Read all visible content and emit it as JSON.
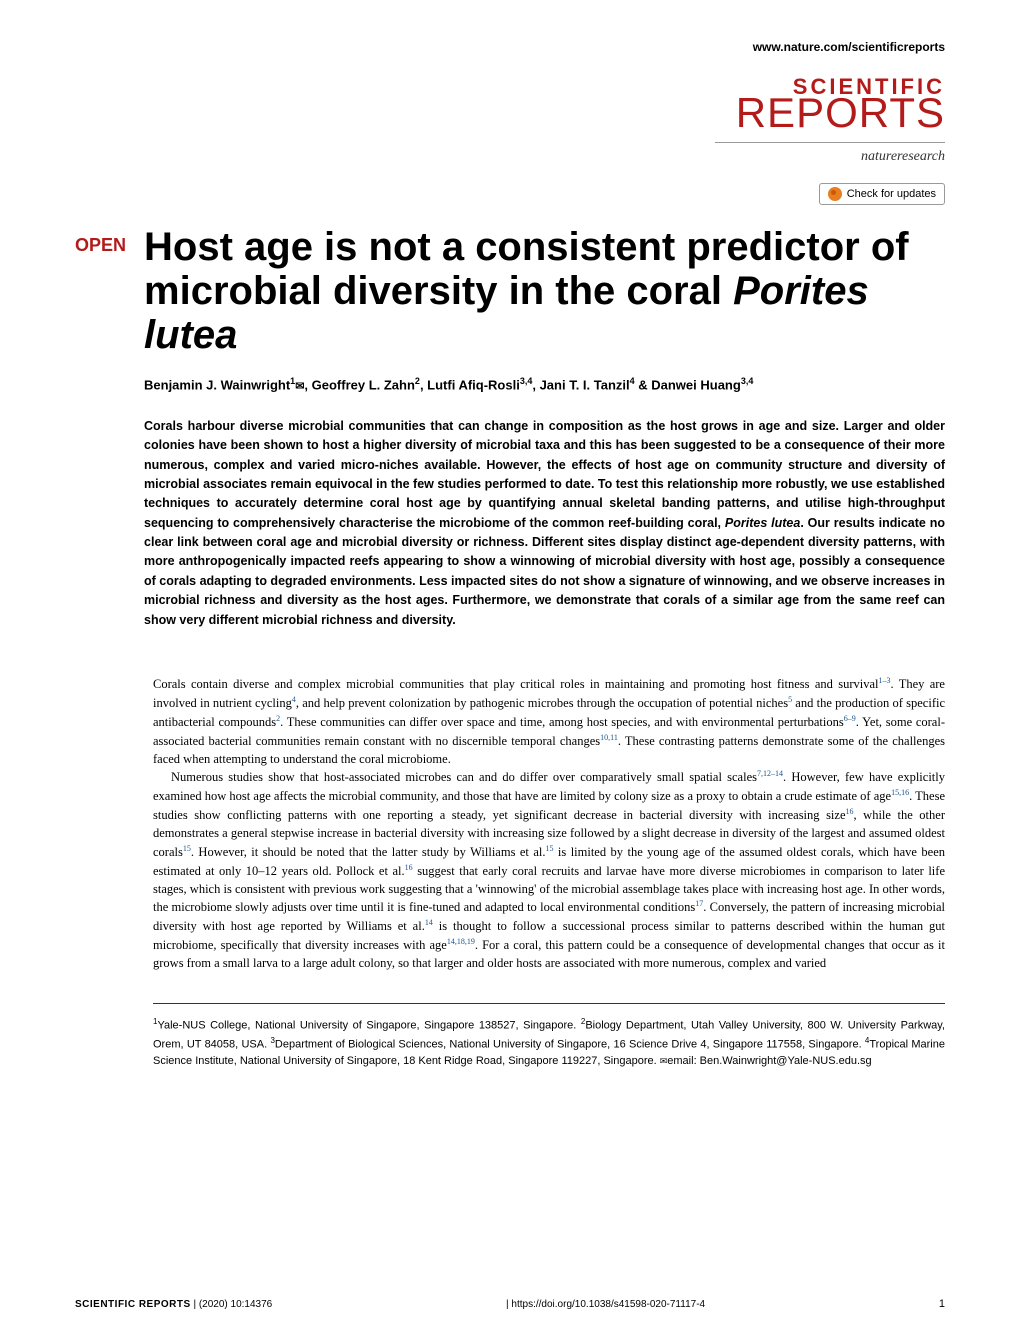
{
  "header": {
    "url": "www.nature.com/scientificreports",
    "journal_word1": "SCIENTIFIC",
    "journal_word2": "REPORTS",
    "publisher": "natureresearch",
    "check_updates_label": "Check for updates"
  },
  "article": {
    "open_badge": "OPEN",
    "title_part1": "Host age is not a consistent predictor of microbial diversity in the coral ",
    "title_species": "Porites lutea",
    "authors_html": "Benjamin J. Wainwright<sup>1</sup><span class=\"envelope\">✉</span>, Geoffrey L. Zahn<sup>2</sup>, Lutfi Afiq-Rosli<sup>3,4</sup>, Jani T. I. Tanzil<sup>4</sup> & Danwei Huang<sup>3,4</sup>"
  },
  "abstract": {
    "text_html": "Corals harbour diverse microbial communities that can change in composition as the host grows in age and size. Larger and older colonies have been shown to host a higher diversity of microbial taxa and this has been suggested to be a consequence of their more numerous, complex and varied micro-niches available. However, the effects of host age on community structure and diversity of microbial associates remain equivocal in the few studies performed to date. To test this relationship more robustly, we use established techniques to accurately determine coral host age by quantifying annual skeletal banding patterns, and utilise high-throughput sequencing to comprehensively characterise the microbiome of the common reef-building coral, <span class=\"species\">Porites lutea</span>. Our results indicate no clear link between coral age and microbial diversity or richness. Different sites display distinct age-dependent diversity patterns, with more anthropogenically impacted reefs appearing to show a winnowing of microbial diversity with host age, possibly a consequence of corals adapting to degraded environments. Less impacted sites do not show a signature of winnowing, and we observe increases in microbial richness and diversity as the host ages. Furthermore, we demonstrate that corals of a similar age from the same reef can show very different microbial richness and diversity."
  },
  "body": {
    "p1_html": "Corals contain diverse and complex microbial communities that play critical roles in maintaining and promoting host fitness and survival<sup>1–3</sup>. They are involved in nutrient cycling<sup>4</sup>, and help prevent colonization by pathogenic microbes through the occupation of potential niches<sup>5</sup> and the production of specific antibacterial compounds<sup>2</sup>. These communities can differ over space and time, among host species, and with environmental perturbations<sup>6–9</sup>. Yet, some coral-associated bacterial communities remain constant with no discernible temporal changes<sup>10,11</sup>. These contrasting patterns demonstrate some of the challenges faced when attempting to understand the coral microbiome.",
    "p2_html": "Numerous studies show that host-associated microbes can and do differ over comparatively small spatial scales<sup>7,12–14</sup>. However, few have explicitly examined how host age affects the microbial community, and those that have are limited by colony size as a proxy to obtain a crude estimate of age<sup>15,16</sup>. These studies show conflicting patterns with one reporting a steady, yet significant decrease in bacterial diversity with increasing size<sup>16</sup>, while the other demonstrates a general stepwise increase in bacterial diversity with increasing size followed by a slight decrease in diversity of the largest and assumed oldest corals<sup>15</sup>. However, it should be noted that the latter study by Williams et al.<sup>15</sup> is limited by the young age of the assumed oldest corals, which have been estimated at only 10–12 years old. Pollock et al.<sup>16</sup> suggest that early coral recruits and larvae have more diverse microbiomes in comparison to later life stages, which is consistent with previous work suggesting that a 'winnowing' of the microbial assemblage takes place with increasing host age. In other words, the microbiome slowly adjusts over time until it is fine-tuned and adapted to local environmental conditions<sup>17</sup>. Conversely, the pattern of increasing microbial diversity with host age reported by Williams et al.<sup>14</sup> is thought to follow a successional process similar to patterns described within the human gut microbiome, specifically that diversity increases with age<sup>14,18,19</sup>. For a coral, this pattern could be a consequence of developmental changes that occur as it grows from a small larva to a large adult colony, so that larger and older hosts are associated with more numerous, complex and varied"
  },
  "affiliations": {
    "text_html": "<sup>1</sup>Yale-NUS College, National University of Singapore, Singapore 138527, Singapore. <sup>2</sup>Biology Department, Utah Valley University, 800 W. University Parkway, Orem, UT 84058, USA. <sup>3</sup>Department of Biological Sciences, National University of Singapore, 16 Science Drive 4, Singapore 117558, Singapore. <sup>4</sup>Tropical Marine Science Institute, National University of Singapore, 18 Kent Ridge Road, Singapore 119227, Singapore. <span class=\"envelope-sm\">✉</span>email: Ben.Wainwright@Yale-NUS.edu.sg"
  },
  "footer": {
    "journal": "SCIENTIFIC REPORTS",
    "citation": "(2020) 10:14376",
    "doi": "https://doi.org/10.1038/s41598-020-71117-4",
    "page": "1"
  },
  "colors": {
    "brand_red": "#b31b1b",
    "ref_blue": "#1a5490",
    "check_orange": "#e67e22",
    "text": "#000000",
    "background": "#ffffff",
    "divider": "#333333"
  },
  "typography": {
    "title_fontsize": 40,
    "title_weight": "bold",
    "abstract_fontsize": 12.5,
    "abstract_weight": "bold",
    "body_fontsize": 12.5,
    "authors_fontsize": 13,
    "affiliations_fontsize": 11,
    "footer_fontsize": 10
  }
}
